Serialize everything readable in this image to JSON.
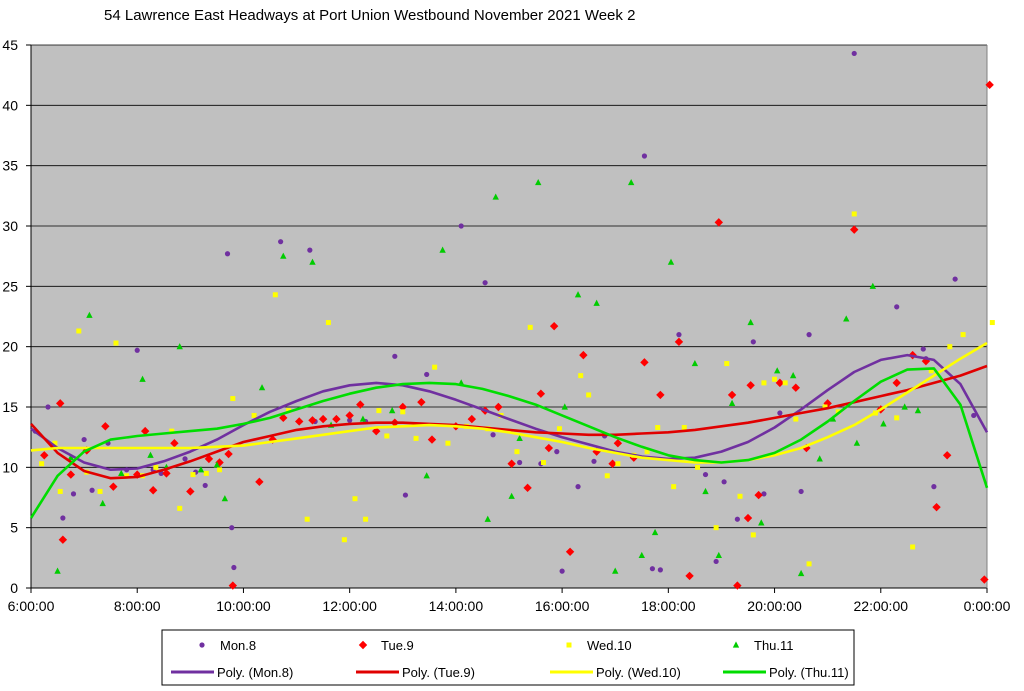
{
  "chart_data": {
    "type": "scatter",
    "title": "54 Lawrence East Headways at Port Union Westbound November 2021  Week 2",
    "xlabel": "",
    "ylabel": "",
    "xlim": [
      6,
      24
    ],
    "ylim": [
      0,
      45
    ],
    "x_ticks": [
      6,
      8,
      10,
      12,
      14,
      16,
      18,
      20,
      22,
      24
    ],
    "x_tick_labels": [
      "6:00:00",
      "8:00:00",
      "10:00:00",
      "12:00:00",
      "14:00:00",
      "16:00:00",
      "18:00:00",
      "20:00:00",
      "22:00:00",
      "0:00:00"
    ],
    "y_ticks": [
      0,
      5,
      10,
      15,
      20,
      25,
      30,
      35,
      40,
      45
    ],
    "y_tick_labels": [
      "0",
      "5",
      "10",
      "15",
      "20",
      "25",
      "30",
      "35",
      "40",
      "45"
    ],
    "grid": "horizontal",
    "plot_background": "#c0c0c0",
    "legend_position": "bottom",
    "series": [
      {
        "name": "Mon.8",
        "marker": "circle",
        "color": "#7030a0",
        "x": [
          6.08,
          6.32,
          6.6,
          6.8,
          7.0,
          7.15,
          7.45,
          7.8,
          8.0,
          8.3,
          8.45,
          8.9,
          9.1,
          9.28,
          9.7,
          9.78,
          9.82,
          10.2,
          10.7,
          11.25,
          11.35,
          12.0,
          12.3,
          12.85,
          13.05,
          13.45,
          14.1,
          14.55,
          14.7,
          15.2,
          15.6,
          15.9,
          16.0,
          16.3,
          16.6,
          16.8,
          17.55,
          17.7,
          17.85,
          18.2,
          18.7,
          18.9,
          19.05,
          19.3,
          19.6,
          19.8,
          20.1,
          20.5,
          20.65,
          21.5,
          22.3,
          22.8,
          22.85,
          23.0,
          23.4,
          23.75
        ],
        "y": [
          13.0,
          15.0,
          5.8,
          7.8,
          12.3,
          8.1,
          12.0,
          9.8,
          19.7,
          9.8,
          9.5,
          10.7,
          9.6,
          8.5,
          27.7,
          5.0,
          1.7,
          14.3,
          28.7,
          28.0,
          13.8,
          13.9,
          13.8,
          19.2,
          7.7,
          17.7,
          30.0,
          25.3,
          12.7,
          10.4,
          10.3,
          11.3,
          1.4,
          8.4,
          10.5,
          12.6,
          35.8,
          1.6,
          1.5,
          21.0,
          9.4,
          2.2,
          8.8,
          5.7,
          20.4,
          7.8,
          14.5,
          8.0,
          21.0,
          44.3,
          23.3,
          19.8,
          19.0,
          8.4,
          25.6,
          14.3
        ]
      },
      {
        "name": "Tue.9",
        "marker": "diamond",
        "color": "#ff0000",
        "x": [
          6.25,
          6.55,
          6.6,
          6.75,
          7.05,
          7.4,
          7.55,
          8.0,
          8.15,
          8.3,
          8.55,
          8.7,
          9.0,
          9.35,
          9.55,
          9.72,
          9.8,
          10.3,
          10.55,
          10.75,
          11.05,
          11.3,
          11.5,
          11.75,
          12.0,
          12.2,
          12.5,
          12.85,
          13.0,
          13.35,
          13.55,
          14.0,
          14.3,
          14.55,
          14.8,
          15.05,
          15.35,
          15.6,
          15.75,
          15.85,
          16.15,
          16.4,
          16.65,
          16.95,
          17.05,
          17.35,
          17.55,
          17.85,
          18.2,
          18.4,
          18.95,
          19.2,
          19.3,
          19.5,
          19.55,
          19.7,
          20.1,
          20.4,
          20.6,
          21.0,
          21.5,
          22.0,
          22.3,
          22.6,
          22.85,
          23.05,
          23.25,
          23.95,
          24.05
        ],
        "y": [
          11.0,
          15.3,
          4.0,
          9.4,
          11.4,
          13.4,
          8.4,
          9.4,
          13.0,
          8.1,
          9.5,
          12.0,
          8.0,
          10.7,
          10.4,
          11.1,
          0.2,
          8.8,
          12.3,
          14.1,
          13.8,
          13.9,
          14.0,
          14.0,
          14.3,
          15.2,
          13.0,
          13.7,
          15.0,
          15.4,
          12.3,
          13.4,
          14.0,
          14.7,
          15.0,
          10.3,
          8.3,
          16.1,
          11.6,
          21.7,
          3.0,
          19.3,
          11.3,
          10.3,
          12.0,
          10.8,
          18.7,
          16.0,
          20.4,
          1.0,
          30.3,
          16.0,
          0.2,
          5.8,
          16.8,
          7.7,
          17.0,
          16.6,
          11.6,
          15.3,
          29.7,
          14.8,
          17.0,
          19.3,
          18.8,
          6.7,
          11.0,
          0.7,
          41.7
        ]
      },
      {
        "name": "Wed.10",
        "marker": "square",
        "color": "#ffff00",
        "x": [
          6.2,
          6.45,
          6.55,
          6.9,
          7.05,
          7.3,
          7.6,
          7.8,
          8.1,
          8.35,
          8.65,
          8.8,
          9.05,
          9.3,
          9.55,
          9.8,
          10.2,
          10.6,
          10.85,
          11.2,
          11.6,
          11.9,
          12.1,
          12.3,
          12.55,
          12.7,
          13.0,
          13.25,
          13.6,
          13.85,
          14.2,
          14.6,
          14.85,
          15.15,
          15.4,
          15.65,
          15.95,
          16.35,
          16.5,
          16.85,
          17.05,
          17.35,
          17.6,
          17.8,
          18.1,
          18.3,
          18.55,
          18.9,
          19.1,
          19.35,
          19.6,
          19.8,
          20.0,
          20.2,
          20.4,
          20.65,
          20.95,
          21.2,
          21.5,
          21.9,
          22.3,
          22.6,
          22.95,
          23.3,
          23.55,
          24.1
        ],
        "y": [
          10.3,
          12.0,
          8.0,
          21.3,
          9.6,
          8.0,
          20.3,
          9.3,
          9.3,
          10.0,
          13.0,
          6.6,
          9.4,
          9.5,
          9.8,
          15.7,
          14.3,
          24.3,
          14.7,
          5.7,
          22.0,
          4.0,
          7.4,
          5.7,
          14.7,
          12.6,
          14.6,
          12.4,
          18.3,
          12.0,
          13.4,
          13.2,
          14.3,
          11.3,
          21.6,
          10.4,
          13.2,
          17.6,
          16.0,
          9.3,
          10.3,
          11.0,
          11.3,
          13.3,
          8.4,
          13.3,
          10.0,
          5.0,
          18.6,
          7.6,
          4.4,
          17.0,
          17.3,
          17.0,
          14.0,
          2.0,
          15.0,
          14.6,
          31.0,
          14.5,
          14.1,
          3.4,
          18.0,
          20.0,
          21.0,
          22.0
        ]
      },
      {
        "name": "Thu.11",
        "marker": "triangle",
        "color": "#00cc00",
        "x": [
          6.5,
          6.75,
          7.1,
          7.35,
          7.7,
          8.1,
          8.25,
          8.55,
          8.8,
          9.2,
          9.5,
          9.65,
          10.35,
          10.75,
          11.3,
          11.65,
          12.25,
          12.8,
          13.45,
          13.75,
          14.1,
          14.6,
          14.75,
          15.05,
          15.2,
          15.55,
          16.05,
          16.3,
          16.65,
          17.0,
          17.3,
          17.5,
          17.75,
          18.05,
          18.5,
          18.7,
          18.95,
          19.2,
          19.55,
          19.75,
          20.05,
          20.35,
          20.5,
          20.85,
          21.1,
          21.35,
          21.55,
          21.85,
          22.05,
          22.45,
          22.7
        ],
        "y": [
          1.4,
          10.8,
          22.6,
          7.0,
          9.5,
          17.3,
          11.0,
          10.0,
          20.0,
          9.8,
          10.2,
          7.4,
          16.6,
          27.5,
          27.0,
          13.5,
          14.0,
          14.7,
          9.3,
          28.0,
          17.0,
          5.7,
          32.4,
          7.6,
          12.4,
          33.6,
          15.0,
          24.3,
          23.6,
          1.4,
          33.6,
          2.7,
          4.6,
          27.0,
          18.6,
          8.0,
          2.7,
          15.3,
          22.0,
          5.4,
          18.0,
          17.6,
          1.2,
          10.7,
          14.0,
          22.3,
          12.0,
          25.0,
          13.6,
          15.0,
          14.7
        ]
      }
    ],
    "trendlines": [
      {
        "name": "Poly. (Mon.8)",
        "color": "#7030a0",
        "x": [
          6.0,
          6.5,
          7.0,
          7.5,
          8.0,
          8.5,
          9.0,
          9.5,
          10.0,
          10.5,
          11.0,
          11.5,
          12.0,
          12.5,
          13.0,
          13.5,
          14.0,
          14.5,
          15.0,
          15.5,
          16.0,
          16.5,
          17.0,
          17.5,
          18.0,
          18.5,
          19.0,
          19.5,
          20.0,
          20.5,
          21.0,
          21.5,
          22.0,
          22.5,
          23.0,
          23.5,
          24.0
        ],
        "y": [
          13.2,
          11.6,
          10.4,
          9.8,
          9.9,
          10.5,
          11.3,
          12.3,
          13.5,
          14.6,
          15.5,
          16.3,
          16.8,
          17.0,
          16.8,
          16.3,
          15.6,
          14.8,
          14.0,
          13.2,
          12.5,
          11.9,
          11.3,
          10.9,
          10.7,
          10.8,
          11.3,
          12.1,
          13.3,
          14.8,
          16.4,
          17.9,
          18.9,
          19.3,
          18.9,
          16.9,
          12.9
        ]
      },
      {
        "name": "Poly. (Tue.9)",
        "color": "#e00000",
        "x": [
          6.0,
          6.5,
          7.0,
          7.5,
          8.0,
          8.5,
          9.0,
          9.5,
          10.0,
          10.5,
          11.0,
          11.5,
          12.0,
          12.5,
          13.0,
          13.5,
          14.0,
          14.5,
          15.0,
          15.5,
          16.0,
          16.5,
          17.0,
          17.5,
          18.0,
          18.5,
          19.0,
          19.5,
          20.0,
          20.5,
          21.0,
          21.5,
          22.0,
          22.5,
          23.0,
          23.5,
          24.0
        ],
        "y": [
          13.6,
          11.2,
          9.7,
          9.1,
          9.2,
          9.8,
          10.5,
          11.3,
          12.1,
          12.6,
          13.1,
          13.4,
          13.6,
          13.7,
          13.7,
          13.6,
          13.5,
          13.3,
          13.1,
          12.9,
          12.8,
          12.7,
          12.7,
          12.8,
          12.9,
          13.1,
          13.4,
          13.7,
          14.1,
          14.5,
          14.9,
          15.4,
          15.9,
          16.4,
          17.0,
          17.6,
          18.4
        ]
      },
      {
        "name": "Poly. (Wed.10)",
        "color": "#ffff00",
        "x": [
          6.0,
          6.5,
          7.0,
          7.5,
          8.0,
          8.5,
          9.0,
          9.5,
          10.0,
          10.5,
          11.0,
          11.5,
          12.0,
          12.5,
          13.0,
          13.5,
          14.0,
          14.5,
          15.0,
          15.5,
          16.0,
          16.5,
          17.0,
          17.5,
          18.0,
          18.5,
          19.0,
          19.5,
          20.0,
          20.5,
          21.0,
          21.5,
          22.0,
          22.5,
          23.0,
          23.5,
          24.0
        ],
        "y": [
          11.4,
          11.6,
          11.6,
          11.6,
          11.6,
          11.6,
          11.6,
          11.7,
          11.8,
          12.1,
          12.4,
          12.7,
          13.0,
          13.3,
          13.4,
          13.5,
          13.4,
          13.2,
          12.9,
          12.5,
          12.1,
          11.6,
          11.2,
          10.8,
          10.6,
          10.4,
          10.4,
          10.6,
          11.0,
          11.6,
          12.5,
          13.5,
          14.8,
          16.2,
          17.6,
          19.0,
          20.3
        ]
      },
      {
        "name": "Poly. (Thu.11)",
        "color": "#00dd00",
        "x": [
          6.0,
          6.5,
          7.0,
          7.5,
          8.0,
          8.5,
          9.0,
          9.5,
          10.0,
          10.5,
          11.0,
          11.5,
          12.0,
          12.5,
          13.0,
          13.5,
          14.0,
          14.5,
          15.0,
          15.5,
          16.0,
          16.5,
          17.0,
          17.5,
          18.0,
          18.5,
          19.0,
          19.5,
          20.0,
          20.5,
          21.0,
          21.5,
          22.0,
          22.5,
          23.0,
          23.5,
          24.0
        ],
        "y": [
          5.8,
          9.3,
          11.3,
          12.3,
          12.6,
          12.8,
          13.0,
          13.2,
          13.6,
          14.1,
          14.8,
          15.5,
          16.1,
          16.6,
          16.9,
          17.0,
          16.9,
          16.5,
          15.9,
          15.2,
          14.3,
          13.4,
          12.5,
          11.7,
          11.0,
          10.6,
          10.4,
          10.6,
          11.2,
          12.3,
          13.8,
          15.5,
          17.1,
          18.1,
          18.2,
          15.2,
          8.3
        ]
      }
    ]
  }
}
